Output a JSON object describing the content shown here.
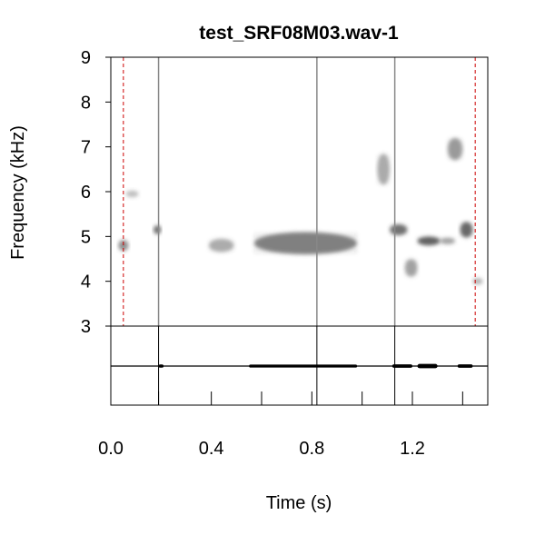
{
  "chart_data": {
    "type": "spectrogram",
    "title": "test_SRF08M03.wav-1",
    "xlabel": "Time (s)",
    "ylabel": "Frequency (kHz)",
    "xlim": [
      0.0,
      1.5
    ],
    "ylim": [
      3,
      9
    ],
    "x_ticks": [
      0.0,
      0.4,
      0.8,
      1.2
    ],
    "x_tick_labels": [
      "0.0",
      "0.4",
      "0.8",
      "1.2"
    ],
    "y_ticks": [
      3,
      4,
      5,
      6,
      7,
      8,
      9
    ],
    "y_tick_labels": [
      "3",
      "4",
      "5",
      "6",
      "7",
      "8",
      "9"
    ],
    "spectrogram_color": "#555555",
    "boundary_lines": {
      "color": "#cc0000",
      "style": "dashed",
      "times": [
        0.05,
        1.45
      ]
    },
    "event_lines": {
      "color": "#888888",
      "times": [
        0.19,
        0.82,
        1.13
      ]
    },
    "segment_ticks": [
      0.19,
      0.4,
      0.6,
      0.8,
      1.0,
      1.2,
      1.4
    ],
    "energy_blobs": [
      {
        "t0": 0.03,
        "t1": 0.07,
        "f": 4.8,
        "bw": 0.25,
        "intensity": 0.6
      },
      {
        "t0": 0.06,
        "t1": 0.11,
        "f": 5.95,
        "bw": 0.15,
        "intensity": 0.35
      },
      {
        "t0": 0.17,
        "t1": 0.2,
        "f": 5.15,
        "bw": 0.2,
        "intensity": 0.8
      },
      {
        "t0": 0.39,
        "t1": 0.49,
        "f": 4.8,
        "bw": 0.3,
        "intensity": 0.45
      },
      {
        "t0": 0.57,
        "t1": 0.98,
        "f": 4.85,
        "bw": 0.5,
        "intensity": 0.7
      },
      {
        "t0": 1.06,
        "t1": 1.11,
        "f": 6.5,
        "bw": 0.7,
        "intensity": 0.45
      },
      {
        "t0": 1.11,
        "t1": 1.18,
        "f": 5.15,
        "bw": 0.25,
        "intensity": 0.8
      },
      {
        "t0": 1.17,
        "t1": 1.22,
        "f": 4.3,
        "bw": 0.4,
        "intensity": 0.5
      },
      {
        "t0": 1.22,
        "t1": 1.31,
        "f": 4.9,
        "bw": 0.2,
        "intensity": 0.9
      },
      {
        "t0": 1.31,
        "t1": 1.37,
        "f": 4.9,
        "bw": 0.15,
        "intensity": 0.5
      },
      {
        "t0": 1.34,
        "t1": 1.4,
        "f": 6.95,
        "bw": 0.5,
        "intensity": 0.55
      },
      {
        "t0": 1.39,
        "t1": 1.44,
        "f": 5.15,
        "bw": 0.35,
        "intensity": 0.85
      },
      {
        "t0": 1.44,
        "t1": 1.48,
        "f": 4.0,
        "bw": 0.15,
        "intensity": 0.4
      }
    ],
    "waveform_bursts": [
      {
        "t0": 0.19,
        "t1": 0.21,
        "amp": 0.5
      },
      {
        "t0": 0.55,
        "t1": 0.98,
        "amp": 0.45
      },
      {
        "t0": 1.12,
        "t1": 1.2,
        "amp": 0.6
      },
      {
        "t0": 1.22,
        "t1": 1.3,
        "amp": 0.9
      },
      {
        "t0": 1.38,
        "t1": 1.44,
        "amp": 0.55
      }
    ]
  }
}
